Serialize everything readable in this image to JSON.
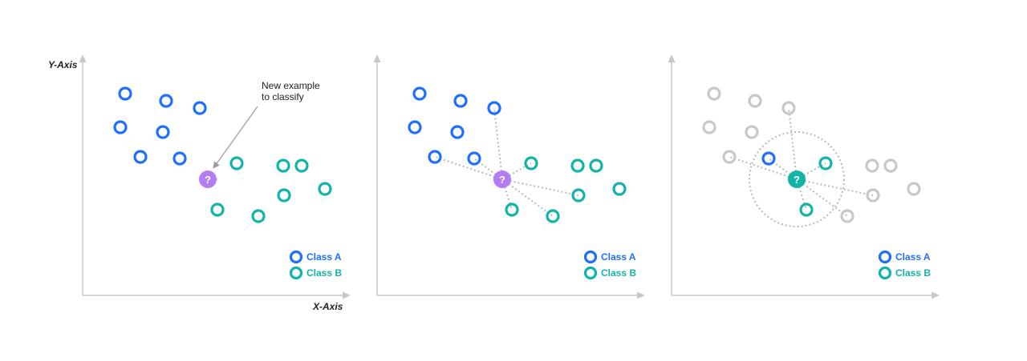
{
  "diagram": {
    "y_axis_label": "Y-Axis",
    "x_axis_label": "X-Axis",
    "callout": {
      "line1": "New example",
      "line2": "to classify"
    },
    "query_symbol": "?",
    "legend": [
      {
        "label": "Class A",
        "color": "#1f6fff"
      },
      {
        "label": "Class B",
        "color": "#12b4a8"
      }
    ],
    "colors": {
      "class_a": "#1f6fff",
      "class_b": "#12b4a8",
      "inactive": "#c8c8cc",
      "query_unclassified": "#b47cf2",
      "query_classified": "#12b4a8",
      "axis": "#c7c7cc",
      "connector": "#b9b9bd",
      "arrow": "#9b9b9f"
    },
    "panels": [
      {
        "name": "panel-1-new-example",
        "query_state": "unclassified",
        "show_callout": true,
        "show_axis_labels": true,
        "show_radius": false
      },
      {
        "name": "panel-2-distances",
        "query_state": "unclassified",
        "show_callout": false,
        "show_axis_labels": false,
        "show_radius": false
      },
      {
        "name": "panel-3-nearest-neighbors",
        "query_state": "classified",
        "show_callout": false,
        "show_axis_labels": false,
        "show_radius": true
      }
    ]
  }
}
